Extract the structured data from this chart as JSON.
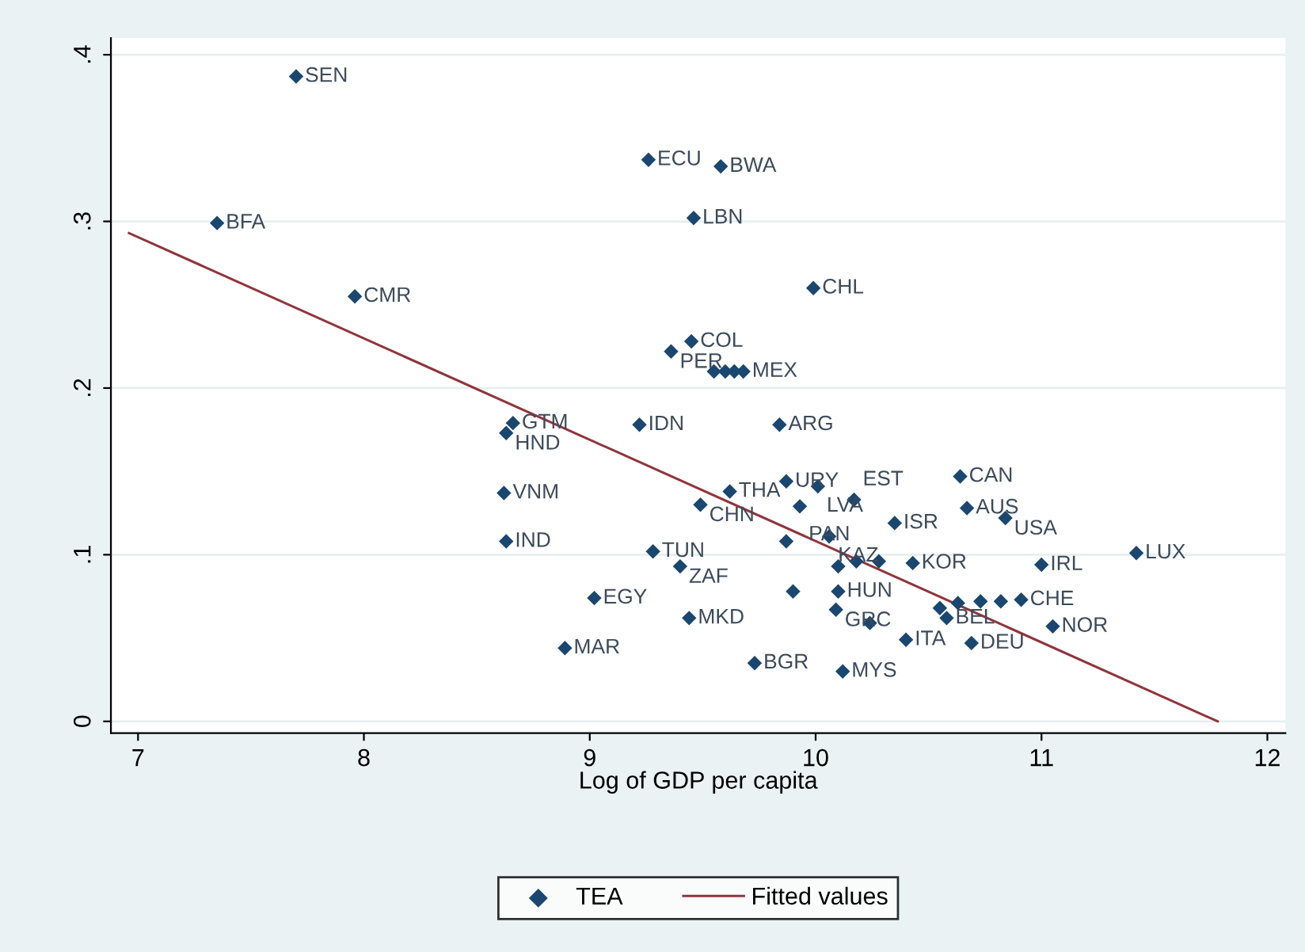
{
  "chart_data": {
    "type": "scatter",
    "xlabel": "Log of GDP per capita",
    "xlim": [
      6.88,
      12.08
    ],
    "ylim": [
      -0.007,
      0.41
    ],
    "xticks": [
      7,
      8,
      9,
      10,
      11,
      12
    ],
    "yticks": [
      {
        "value": 0,
        "label": "0"
      },
      {
        "value": 0.1,
        "label": ".1"
      },
      {
        "value": 0.2,
        "label": ".2"
      },
      {
        "value": 0.3,
        "label": ".3"
      },
      {
        "value": 0.4,
        "label": ".4"
      }
    ],
    "grid": "y",
    "legend": "bottom",
    "series": [
      {
        "name": "TEA",
        "marker": "diamond",
        "color": "#1a476f",
        "x": [
          7.7,
          9.26,
          9.58,
          7.35,
          9.46,
          7.96,
          9.99,
          9.45,
          9.36,
          9.55,
          9.6,
          9.64,
          9.68,
          8.66,
          8.63,
          9.22,
          9.84,
          9.87,
          10.01,
          9.62,
          9.49,
          9.93,
          10.17,
          10.35,
          10.64,
          10.67,
          10.84,
          11.42,
          8.62,
          8.63,
          9.87,
          10.06,
          9.28,
          9.4,
          10.1,
          10.18,
          10.28,
          10.43,
          11.0,
          9.9,
          10.1,
          10.09,
          10.24,
          10.4,
          10.69,
          11.05,
          10.91,
          10.55,
          10.63,
          10.73,
          10.82,
          10.58,
          9.02,
          9.44,
          8.89,
          9.73,
          10.12
        ],
        "values": [
          0.387,
          0.337,
          0.333,
          0.299,
          0.302,
          0.255,
          0.26,
          0.228,
          0.222,
          0.21,
          0.21,
          0.21,
          0.21,
          0.179,
          0.173,
          0.178,
          0.178,
          0.144,
          0.141,
          0.138,
          0.13,
          0.129,
          0.133,
          0.119,
          0.147,
          0.128,
          0.122,
          0.101,
          0.137,
          0.108,
          0.108,
          0.111,
          0.102,
          0.093,
          0.093,
          0.096,
          0.096,
          0.095,
          0.094,
          0.078,
          0.078,
          0.067,
          0.059,
          0.049,
          0.047,
          0.057,
          0.073,
          0.068,
          0.071,
          0.072,
          0.072,
          0.062,
          0.074,
          0.062,
          0.044,
          0.035,
          0.03
        ]
      },
      {
        "name": "Fitted values",
        "type": "line",
        "color": "#90353b",
        "x": [
          6.96,
          11.78
        ],
        "values": [
          0.293,
          0.0
        ]
      }
    ],
    "annotations": [
      {
        "text": "SEN",
        "x": 7.7,
        "y": 0.387
      },
      {
        "text": "ECU",
        "x": 9.26,
        "y": 0.337
      },
      {
        "text": "BWA",
        "x": 9.58,
        "y": 0.333
      },
      {
        "text": "BFA",
        "x": 7.35,
        "y": 0.299
      },
      {
        "text": "LBN",
        "x": 9.46,
        "y": 0.302
      },
      {
        "text": "CMR",
        "x": 7.96,
        "y": 0.255
      },
      {
        "text": "CHL",
        "x": 9.99,
        "y": 0.26
      },
      {
        "text": "COL",
        "x": 9.45,
        "y": 0.228
      },
      {
        "text": "PER",
        "x": 9.36,
        "y": 0.222
      },
      {
        "text": "MEX",
        "x": 9.68,
        "y": 0.21
      },
      {
        "text": "GTM",
        "x": 8.66,
        "y": 0.179
      },
      {
        "text": "HND",
        "x": 8.63,
        "y": 0.173
      },
      {
        "text": "IDN",
        "x": 9.22,
        "y": 0.178
      },
      {
        "text": "ARG",
        "x": 9.84,
        "y": 0.178
      },
      {
        "text": "URY",
        "x": 9.87,
        "y": 0.144
      },
      {
        "text": "LVA",
        "x": 10.01,
        "y": 0.141
      },
      {
        "text": "THA",
        "x": 9.62,
        "y": 0.138
      },
      {
        "text": "CHN",
        "x": 9.49,
        "y": 0.13
      },
      {
        "text": "PAN",
        "x": 9.93,
        "y": 0.129
      },
      {
        "text": "EST",
        "x": 10.17,
        "y": 0.133
      },
      {
        "text": "ISR",
        "x": 10.35,
        "y": 0.119
      },
      {
        "text": "CAN",
        "x": 10.64,
        "y": 0.147
      },
      {
        "text": "AUS",
        "x": 10.67,
        "y": 0.128
      },
      {
        "text": "USA",
        "x": 10.84,
        "y": 0.122
      },
      {
        "text": "LUX",
        "x": 11.42,
        "y": 0.101
      },
      {
        "text": "VNM",
        "x": 8.62,
        "y": 0.137
      },
      {
        "text": "IND",
        "x": 8.63,
        "y": 0.108
      },
      {
        "text": "KAZ",
        "x": 10.06,
        "y": 0.111
      },
      {
        "text": "TUN",
        "x": 9.28,
        "y": 0.102
      },
      {
        "text": "ZAF",
        "x": 9.4,
        "y": 0.093
      },
      {
        "text": "KOR",
        "x": 10.43,
        "y": 0.095
      },
      {
        "text": "IRL",
        "x": 11.0,
        "y": 0.094
      },
      {
        "text": "HUN",
        "x": 10.1,
        "y": 0.078
      },
      {
        "text": "GRC",
        "x": 10.09,
        "y": 0.067
      },
      {
        "text": "ITA",
        "x": 10.4,
        "y": 0.049
      },
      {
        "text": "DEU",
        "x": 10.69,
        "y": 0.047
      },
      {
        "text": "NOR",
        "x": 11.05,
        "y": 0.057
      },
      {
        "text": "CHE",
        "x": 10.91,
        "y": 0.073
      },
      {
        "text": "BEL",
        "x": 10.58,
        "y": 0.062
      },
      {
        "text": "EGY",
        "x": 9.02,
        "y": 0.074
      },
      {
        "text": "MKD",
        "x": 9.44,
        "y": 0.062
      },
      {
        "text": "MAR",
        "x": 8.89,
        "y": 0.044
      },
      {
        "text": "BGR",
        "x": 9.73,
        "y": 0.035
      },
      {
        "text": "MYS",
        "x": 10.12,
        "y": 0.03
      }
    ]
  }
}
